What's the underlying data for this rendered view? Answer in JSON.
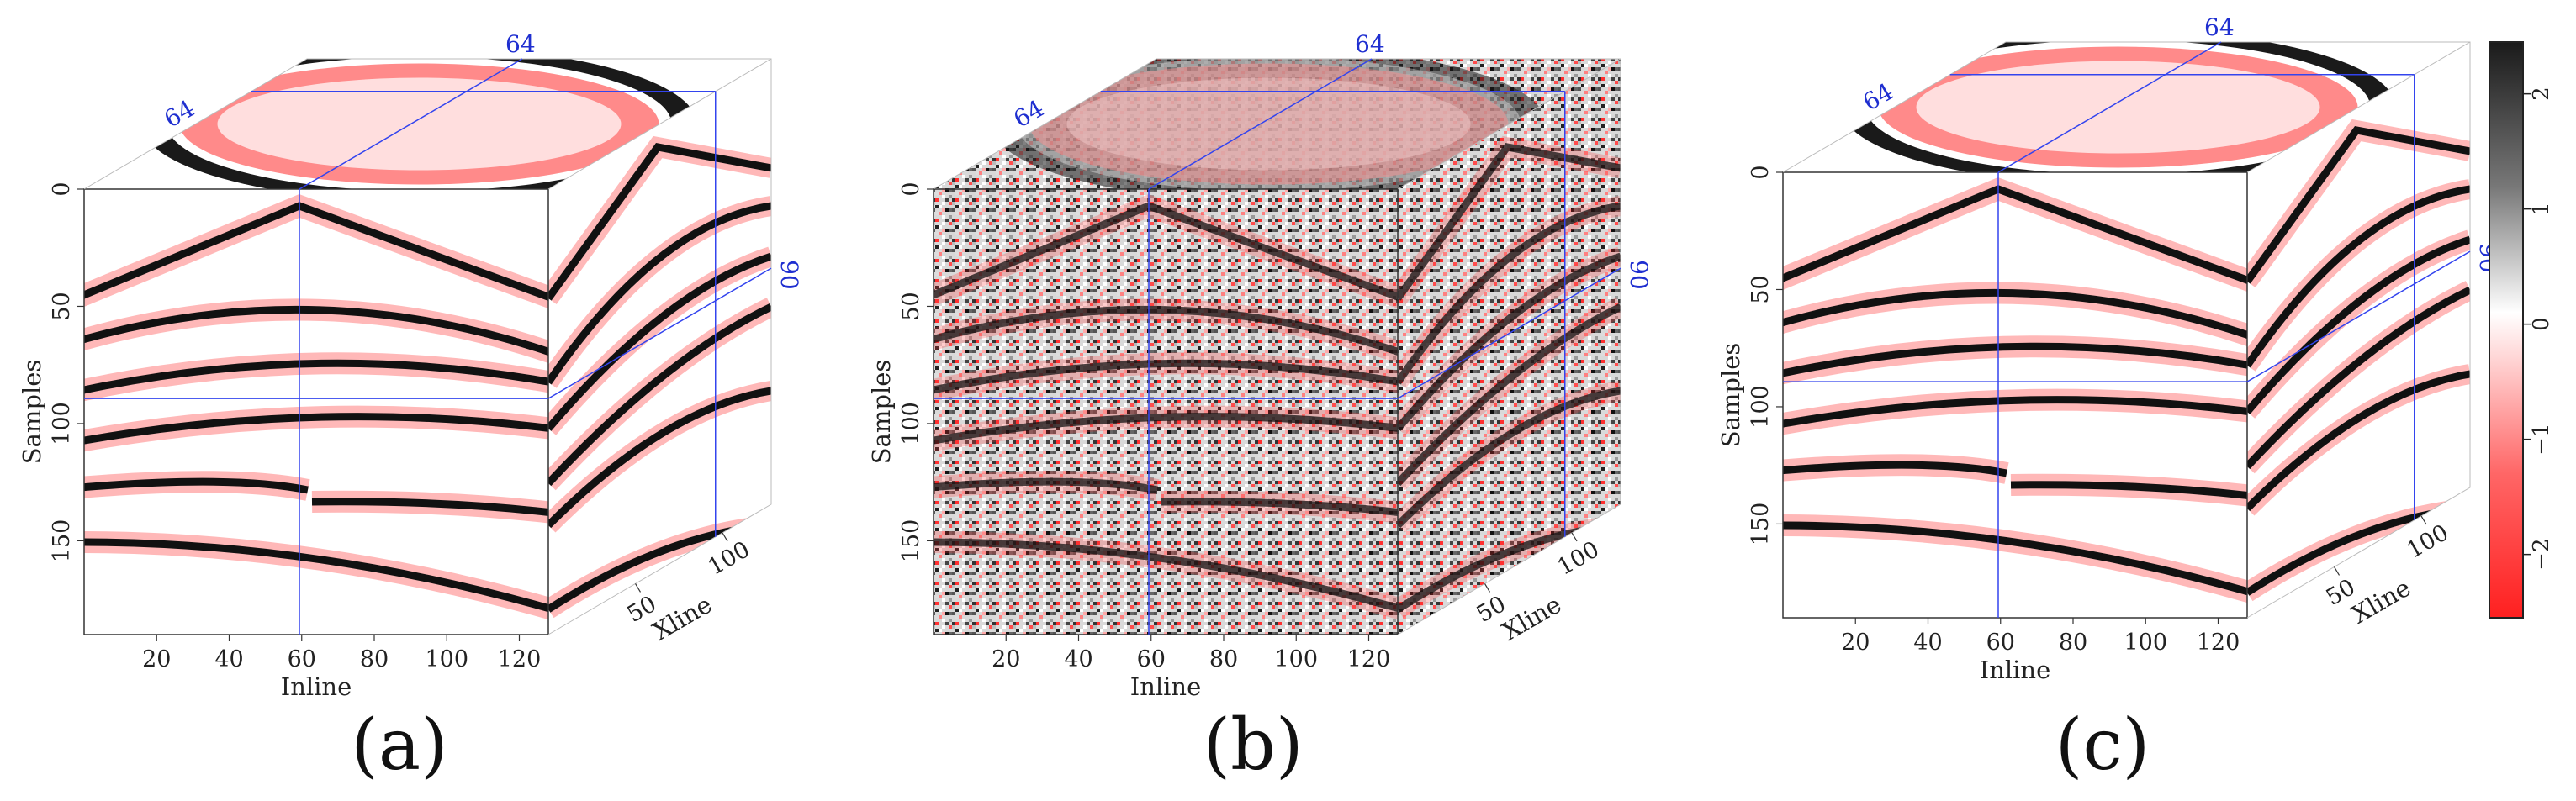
{
  "panels": [
    {
      "id": "a",
      "label": "(a)",
      "noisy": false,
      "xlabel": "Inline",
      "ylabel": "Samples",
      "zlabel": "Xline",
      "inline_ticks": [
        "20",
        "40",
        "60",
        "80",
        "100",
        "120"
      ],
      "sample_ticks": [
        "0",
        "50",
        "100",
        "150"
      ],
      "xline_ticks": [
        "50",
        "100"
      ],
      "slice_inline": "64",
      "slice_xline": "64",
      "slice_sample": "90"
    },
    {
      "id": "b",
      "label": "(b)",
      "noisy": true,
      "xlabel": "Inline",
      "ylabel": "Samples",
      "zlabel": "Xline",
      "inline_ticks": [
        "20",
        "40",
        "60",
        "80",
        "100",
        "120"
      ],
      "sample_ticks": [
        "0",
        "50",
        "100",
        "150"
      ],
      "xline_ticks": [
        "50",
        "100"
      ],
      "slice_inline": "64",
      "slice_xline": "64",
      "slice_sample": "90"
    },
    {
      "id": "c",
      "label": "(c)",
      "noisy": false,
      "xlabel": "Inline",
      "ylabel": "Samples",
      "zlabel": "Xline",
      "inline_ticks": [
        "20",
        "40",
        "60",
        "80",
        "100",
        "120"
      ],
      "sample_ticks": [
        "0",
        "50",
        "100",
        "150"
      ],
      "xline_ticks": [
        "50",
        "100"
      ],
      "slice_inline": "64",
      "slice_xline": "64",
      "slice_sample": "90"
    }
  ],
  "colorbar": {
    "ticks": [
      "2",
      "1",
      "0",
      "−1",
      "−2"
    ],
    "colors": {
      "high": "#000000",
      "zero": "#ffffff",
      "low": "#ff2222"
    }
  },
  "colors": {
    "slice_line": "#3344ee",
    "event": "#111111",
    "side": "#ff3333"
  }
}
